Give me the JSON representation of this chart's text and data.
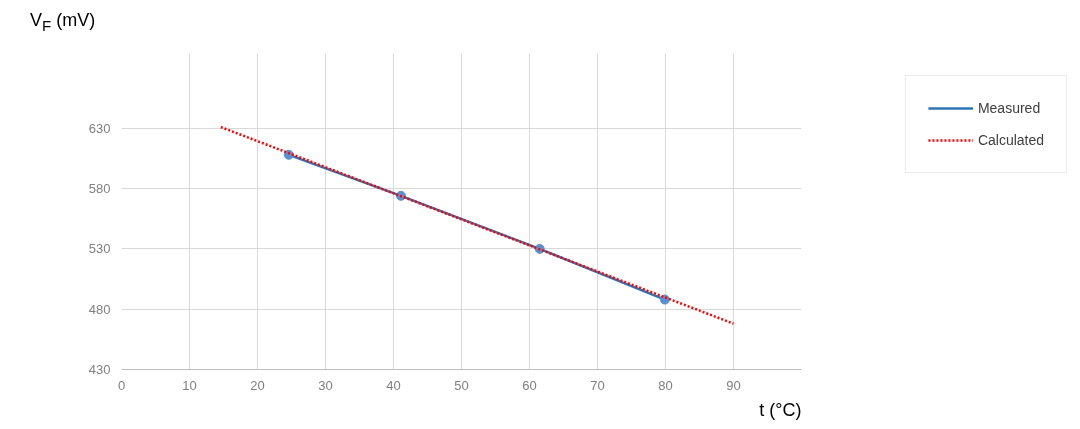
{
  "chart_data": {
    "type": "line",
    "xlabel": "t (°C)",
    "ylabel": "V$_{F}$ (mV)",
    "xlim": [
      0,
      100
    ],
    "xticks": [
      0,
      10,
      20,
      30,
      40,
      50,
      60,
      70,
      80,
      90
    ],
    "ylim": [
      430,
      692
    ],
    "yticks": [
      430,
      480,
      530,
      580,
      630
    ],
    "grid": true,
    "legend": "top right",
    "series": [
      {
        "name": "Measured",
        "color": "#2e75b6",
        "marker": "circle",
        "line_style": "solid",
        "x": [
          24.6,
          41.1,
          61.5,
          79.9
        ],
        "values": [
          608,
          574,
          530,
          488
        ]
      },
      {
        "name": "Calculated",
        "color": "#ff0000",
        "marker": "none",
        "line_style": "dotted",
        "x": [
          14.6,
          90
        ],
        "values": [
          631,
          468
        ]
      }
    ]
  }
}
